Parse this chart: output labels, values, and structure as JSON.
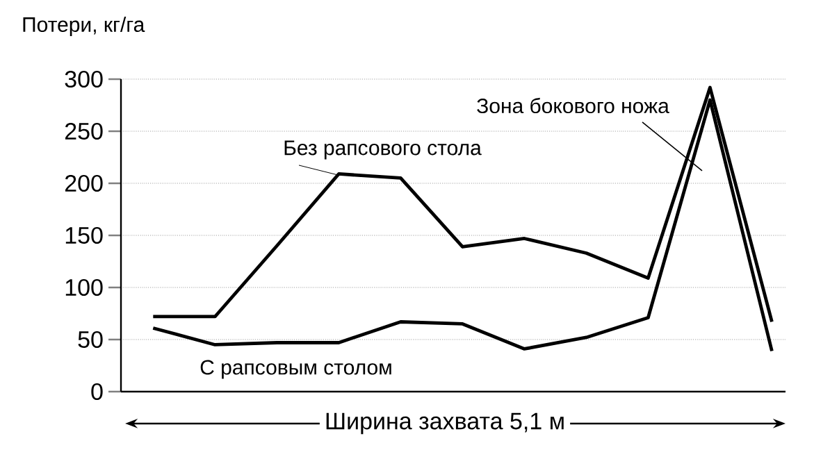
{
  "chart_data": {
    "type": "line",
    "ylabel": "Потери, кг/га",
    "xlabel": "Ширина захвата 5,1 м",
    "categories": [
      null,
      null,
      null,
      null,
      null,
      null,
      null,
      null,
      null,
      null,
      null
    ],
    "series": [
      {
        "name": "Без рапсового стола",
        "color": "#000000",
        "values": [
          72,
          72,
          140,
          209,
          205,
          139,
          147,
          133,
          109,
          292,
          67
        ]
      },
      {
        "name": "С рапсовым столом",
        "color": "#000000",
        "values": [
          61,
          45,
          47,
          47,
          67,
          65,
          41,
          52,
          71,
          280,
          39
        ]
      }
    ],
    "annotations": [
      "Зона бокового ножа"
    ],
    "ylim": [
      0,
      300
    ],
    "yticks": [
      0,
      50,
      100,
      150,
      200,
      250,
      300
    ],
    "grid": "y",
    "marker": "none",
    "line_style": "solid",
    "tick_labels": "y"
  }
}
